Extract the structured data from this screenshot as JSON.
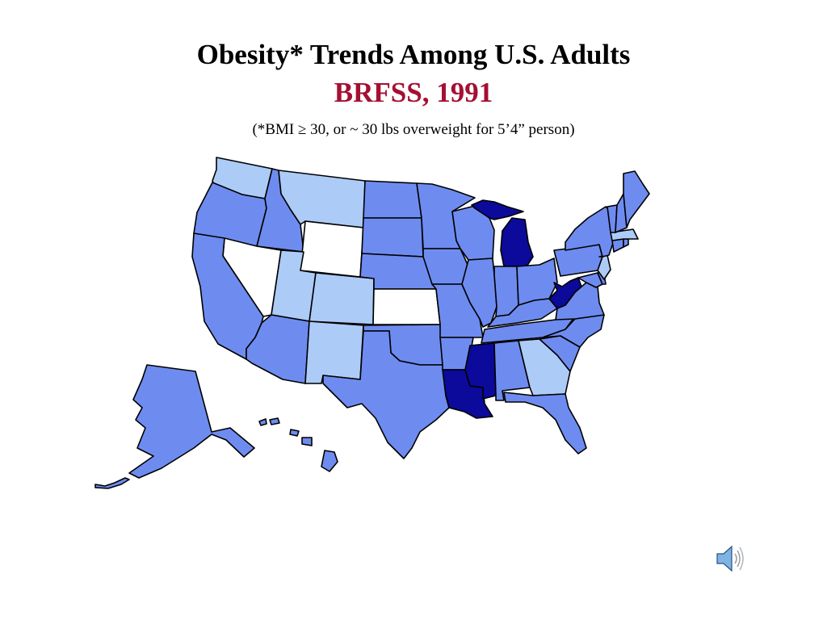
{
  "slide": {
    "title": "Obesity* Trends Among U.S. Adults",
    "subtitle": "BRFSS, 1991",
    "note": "(*BMI ≥ 30, or ~ 30 lbs overweight for 5’4” person)"
  },
  "colors": {
    "background": "#ffffff",
    "subtitle": "#a50f32",
    "no_data": "#ffffff",
    "level_1": "#adcbf7",
    "level_2": "#6e8cf0",
    "level_3": "#0b0a9a"
  },
  "map_data": {
    "state_levels": {
      "WA": "level_1",
      "MT": "level_1",
      "UT": "level_1",
      "CO": "level_1",
      "NM": "level_1",
      "GA": "level_1",
      "MA": "level_1",
      "NJ": "level_1",
      "NV": "no_data",
      "WY": "no_data",
      "KS": "no_data",
      "MI": "level_3",
      "WV": "level_3",
      "LA": "level_3",
      "MS": "level_3",
      "OR": "level_2",
      "ID": "level_2",
      "CA": "level_2",
      "AZ": "level_2",
      "ND": "level_2",
      "SD": "level_2",
      "NE": "level_2",
      "OK": "level_2",
      "TX": "level_2",
      "MN": "level_2",
      "IA": "level_2",
      "MO": "level_2",
      "AR": "level_2",
      "WI": "level_2",
      "IL": "level_2",
      "IN": "level_2",
      "OH": "level_2",
      "KY": "level_2",
      "TN": "level_2",
      "AL": "level_2",
      "FL": "level_2",
      "SC": "level_2",
      "NC": "level_2",
      "VA": "level_2",
      "PA": "level_2",
      "NY": "level_2",
      "VT": "level_2",
      "NH": "level_2",
      "ME": "level_2",
      "CT": "level_2",
      "RI": "level_2",
      "DE": "level_2",
      "MD": "level_2",
      "AK": "level_2",
      "HI": "level_2"
    }
  },
  "icons": {
    "speaker": "speaker-icon"
  }
}
